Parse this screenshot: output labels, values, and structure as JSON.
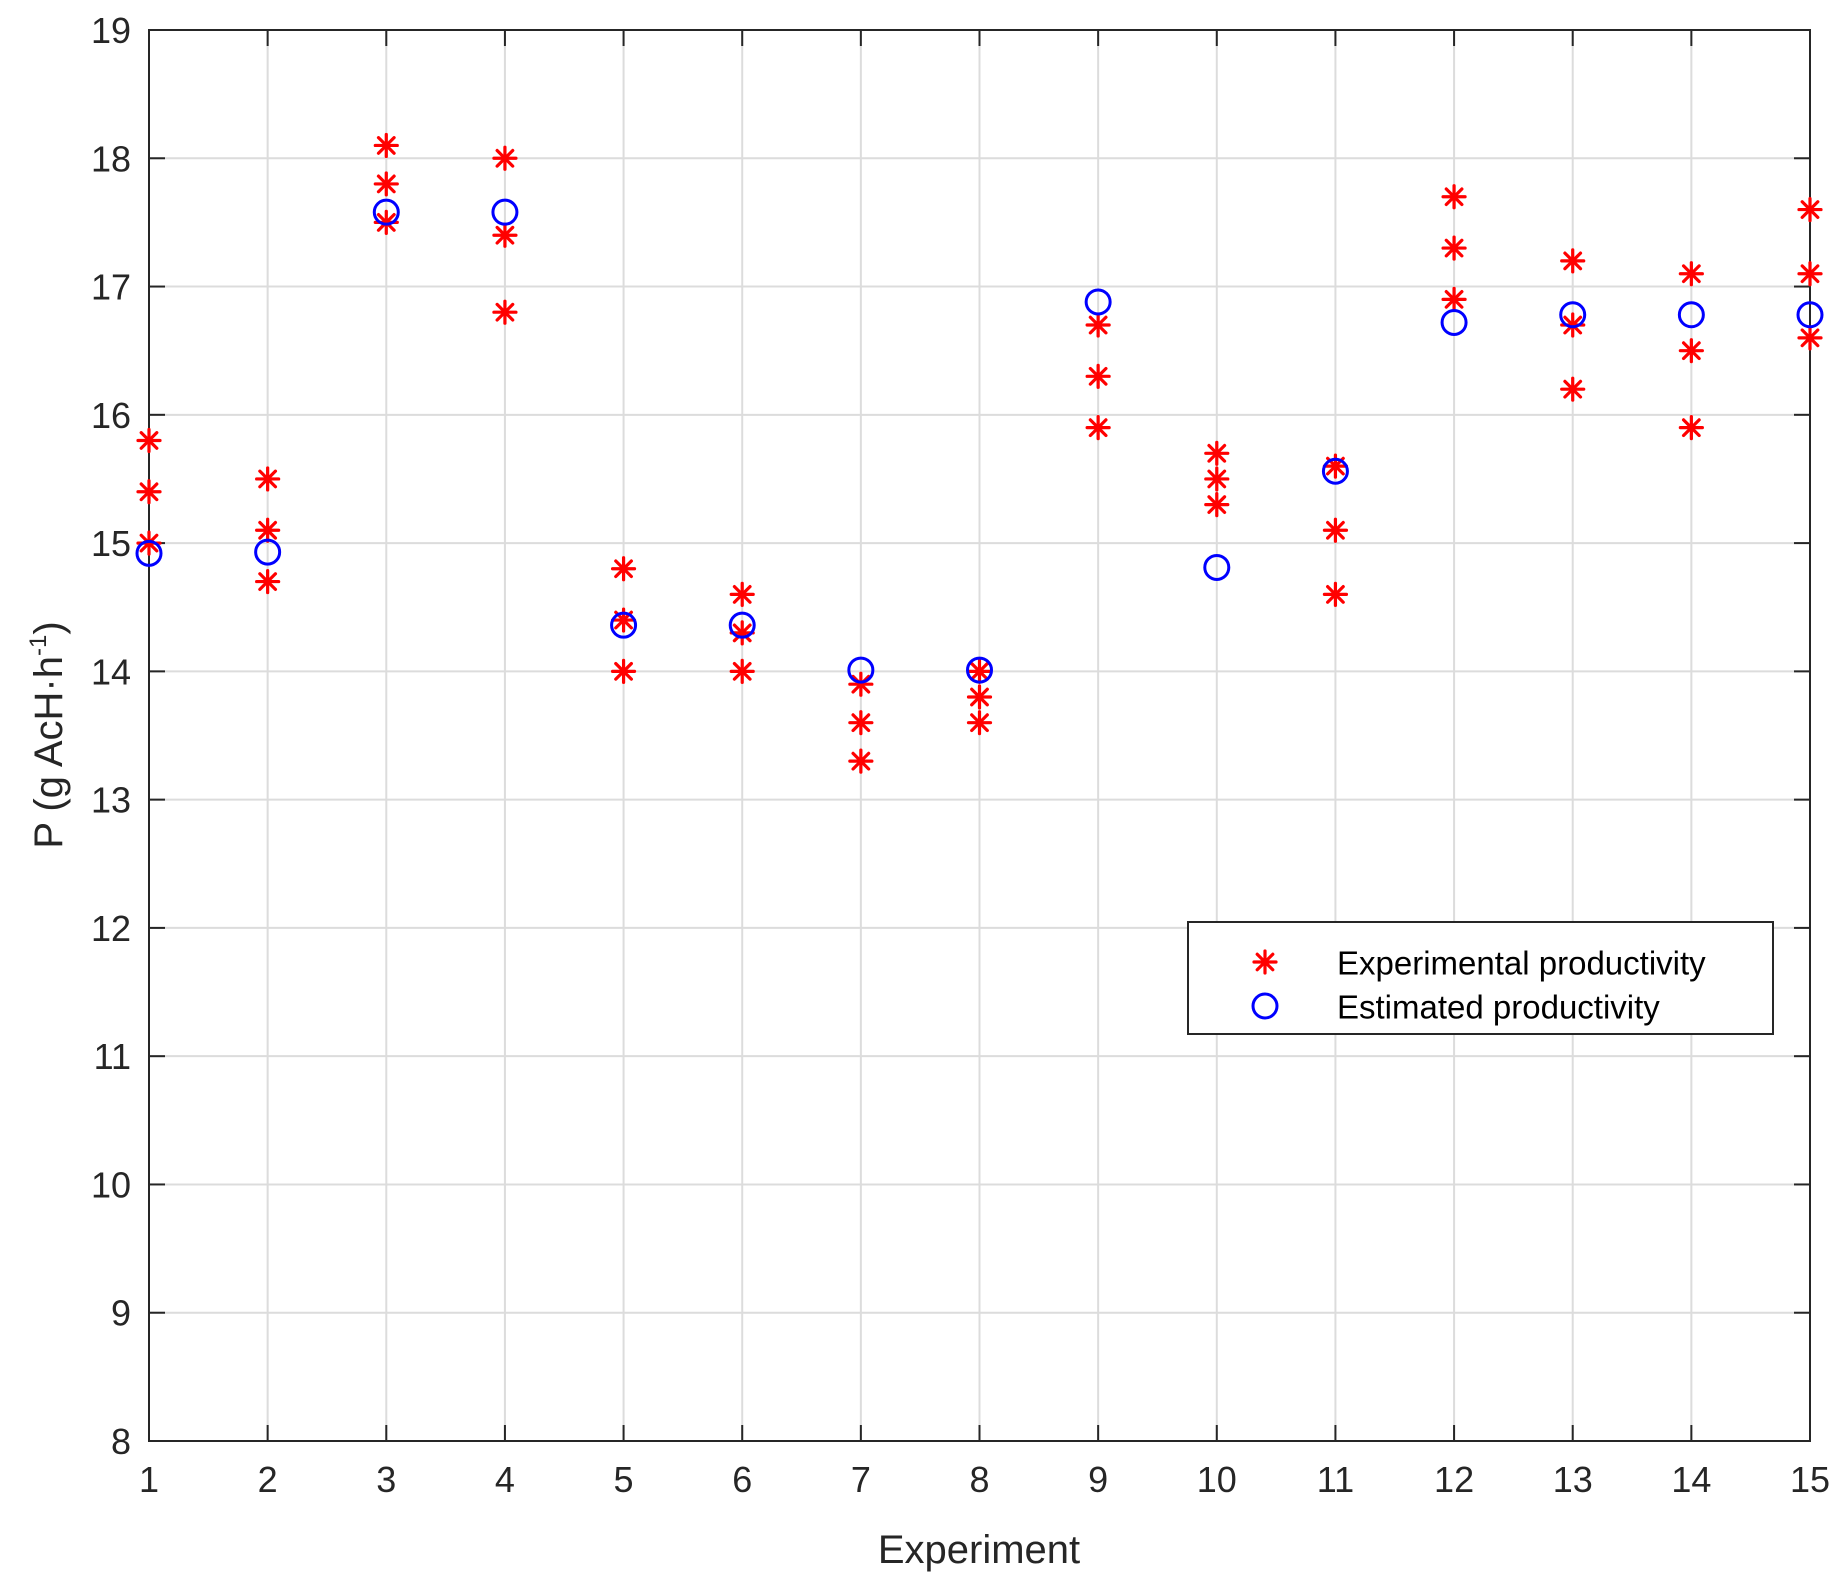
{
  "chart_data": {
    "type": "scatter",
    "title": "",
    "xlabel": "Experiment",
    "ylabel": {
      "main": "P (g AcH·h",
      "superscript": "-1",
      "close": ")"
    },
    "xlim": [
      1,
      15
    ],
    "ylim": [
      8,
      19
    ],
    "xticks": [
      1,
      2,
      3,
      4,
      5,
      6,
      7,
      8,
      9,
      10,
      11,
      12,
      13,
      14,
      15
    ],
    "yticks": [
      8,
      9,
      10,
      11,
      12,
      13,
      14,
      15,
      16,
      17,
      18,
      19
    ],
    "grid": true,
    "legend_position": "right-center",
    "series": [
      {
        "name": "Experimental productivity",
        "marker": "asterisk",
        "color": "#ff0000",
        "points": [
          [
            1,
            15.8
          ],
          [
            1,
            15.4
          ],
          [
            1,
            15.0
          ],
          [
            2,
            15.5
          ],
          [
            2,
            15.1
          ],
          [
            2,
            14.7
          ],
          [
            3,
            18.1
          ],
          [
            3,
            17.8
          ],
          [
            3,
            17.5
          ],
          [
            4,
            18.0
          ],
          [
            4,
            17.4
          ],
          [
            4,
            16.8
          ],
          [
            5,
            14.8
          ],
          [
            5,
            14.4
          ],
          [
            5,
            14.0
          ],
          [
            6,
            14.6
          ],
          [
            6,
            14.3
          ],
          [
            6,
            14.0
          ],
          [
            7,
            13.9
          ],
          [
            7,
            13.6
          ],
          [
            7,
            13.3
          ],
          [
            8,
            14.0
          ],
          [
            8,
            13.8
          ],
          [
            8,
            13.6
          ],
          [
            9,
            16.7
          ],
          [
            9,
            16.3
          ],
          [
            9,
            15.9
          ],
          [
            10,
            15.7
          ],
          [
            10,
            15.5
          ],
          [
            10,
            15.3
          ],
          [
            11,
            15.6
          ],
          [
            11,
            15.1
          ],
          [
            11,
            14.6
          ],
          [
            12,
            17.7
          ],
          [
            12,
            17.3
          ],
          [
            12,
            16.9
          ],
          [
            13,
            17.2
          ],
          [
            13,
            16.7
          ],
          [
            13,
            16.2
          ],
          [
            14,
            17.1
          ],
          [
            14,
            16.5
          ],
          [
            14,
            15.9
          ],
          [
            15,
            17.6
          ],
          [
            15,
            17.1
          ],
          [
            15,
            16.6
          ]
        ]
      },
      {
        "name": "Estimated productivity",
        "marker": "circle",
        "color": "#0000ff",
        "points": [
          [
            1,
            14.92
          ],
          [
            2,
            14.93
          ],
          [
            3,
            17.58
          ],
          [
            4,
            17.58
          ],
          [
            5,
            14.36
          ],
          [
            6,
            14.36
          ],
          [
            7,
            14.01
          ],
          [
            8,
            14.01
          ],
          [
            9,
            16.88
          ],
          [
            10,
            14.81
          ],
          [
            11,
            15.56
          ],
          [
            12,
            16.72
          ],
          [
            13,
            16.78
          ],
          [
            14,
            16.78
          ],
          [
            15,
            16.78
          ]
        ]
      }
    ]
  }
}
